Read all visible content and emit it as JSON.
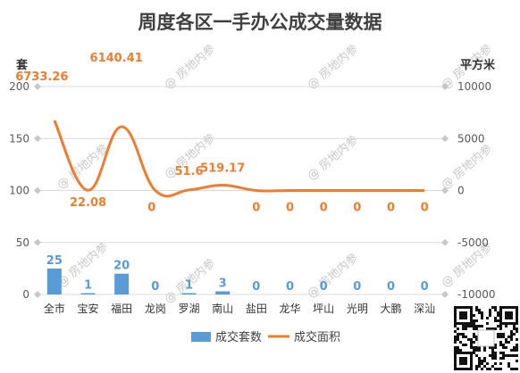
{
  "watermark_text": "@ 房地内参",
  "chart_data": {
    "type": "bar",
    "title": "周度各区一手办公成交量数据",
    "categories": [
      "全市",
      "宝安",
      "福田",
      "龙岗",
      "罗湖",
      "南山",
      "盐田",
      "龙华",
      "坪山",
      "光明",
      "大鹏",
      "深汕"
    ],
    "series": [
      {
        "name": "成交套数",
        "type": "bar",
        "axis": "left",
        "color": "#5b9bd5",
        "values": [
          25,
          1,
          20,
          0,
          1,
          3,
          0,
          0,
          0,
          0,
          0,
          0
        ],
        "labels": [
          "25",
          "1",
          "20",
          "0",
          "1",
          "3",
          "0",
          "0",
          "0",
          "0",
          "0",
          "0"
        ]
      },
      {
        "name": "成交面积",
        "type": "line",
        "axis": "right",
        "color": "#ed7d31",
        "smooth": true,
        "values": [
          6733.26,
          22.08,
          6140.41,
          0,
          51.6,
          519.17,
          0,
          0,
          0,
          0,
          0,
          0
        ],
        "labels": [
          "6733.26",
          "22.08",
          "6140.41",
          "0",
          "51.6",
          "519.17",
          "0",
          "0",
          "0",
          "0",
          "0",
          "0"
        ]
      }
    ],
    "left_axis": {
      "unit": "套",
      "min": 0,
      "max": 200,
      "ticks": [
        0,
        50,
        100,
        150,
        200
      ],
      "tick_labels": [
        "0",
        "50",
        "100",
        "150",
        "200"
      ]
    },
    "right_axis": {
      "unit": "平方米",
      "min": -10000,
      "max": 10000,
      "ticks": [
        -10000,
        -5000,
        0,
        5000,
        10000
      ],
      "tick_labels": [
        "-10000",
        "-5000",
        "0",
        "5000",
        "10000"
      ]
    },
    "grid": true,
    "legend_position": "bottom"
  }
}
